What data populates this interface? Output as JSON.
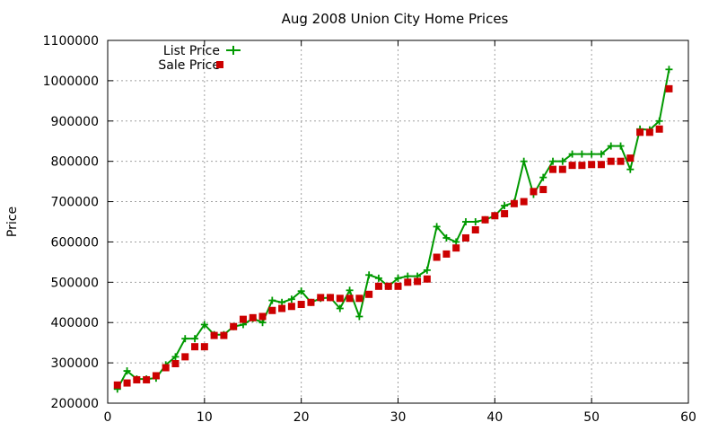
{
  "chart_data": {
    "type": "line",
    "title": "Aug 2008 Union City Home Prices",
    "xlabel": "",
    "ylabel": "Price",
    "xlim": [
      0,
      60
    ],
    "ylim": [
      200000,
      1100000
    ],
    "x_ticks": [
      "0",
      "10",
      "20",
      "30",
      "40",
      "50",
      "60"
    ],
    "y_ticks": [
      "200000",
      "300000",
      "400000",
      "500000",
      "600000",
      "700000",
      "800000",
      "900000",
      "1000000",
      "1100000"
    ],
    "grid": true,
    "legend_position": "top-left",
    "x": [
      1,
      2,
      3,
      4,
      5,
      6,
      7,
      8,
      9,
      10,
      11,
      12,
      13,
      14,
      15,
      16,
      17,
      18,
      19,
      20,
      21,
      22,
      23,
      24,
      25,
      26,
      27,
      28,
      29,
      30,
      31,
      32,
      33,
      34,
      35,
      36,
      37,
      38,
      39,
      40,
      41,
      42,
      43,
      44,
      45,
      46,
      47,
      48,
      49,
      50,
      51,
      52,
      53,
      54,
      55,
      56,
      57,
      58
    ],
    "series": [
      {
        "name": "List Price",
        "style": "line-plus",
        "color": "#009900",
        "values": [
          235000,
          280000,
          260000,
          260000,
          262000,
          295000,
          315000,
          360000,
          360000,
          395000,
          370000,
          370000,
          390000,
          395000,
          410000,
          400000,
          455000,
          450000,
          458000,
          478000,
          450000,
          460000,
          462000,
          435000,
          480000,
          415000,
          518000,
          510000,
          490000,
          510000,
          515000,
          515000,
          530000,
          638000,
          610000,
          600000,
          650000,
          650000,
          655000,
          665000,
          690000,
          698000,
          800000,
          718000,
          760000,
          800000,
          800000,
          818000,
          818000,
          818000,
          818000,
          838000,
          838000,
          780000,
          880000,
          878000,
          900000,
          1028000
        ]
      },
      {
        "name": "Sale Price",
        "style": "squares",
        "color": "#cc0000",
        "values": [
          245000,
          250000,
          258000,
          258000,
          268000,
          288000,
          298000,
          315000,
          340000,
          340000,
          368000,
          368000,
          390000,
          408000,
          412000,
          415000,
          430000,
          435000,
          440000,
          445000,
          450000,
          462000,
          462000,
          460000,
          460000,
          460000,
          470000,
          490000,
          490000,
          490000,
          500000,
          502000,
          508000,
          562000,
          570000,
          585000,
          610000,
          630000,
          655000,
          665000,
          670000,
          695000,
          700000,
          725000,
          730000,
          780000,
          780000,
          790000,
          790000,
          792000,
          792000,
          800000,
          800000,
          808000,
          872000,
          872000,
          880000,
          980000
        ]
      }
    ]
  }
}
